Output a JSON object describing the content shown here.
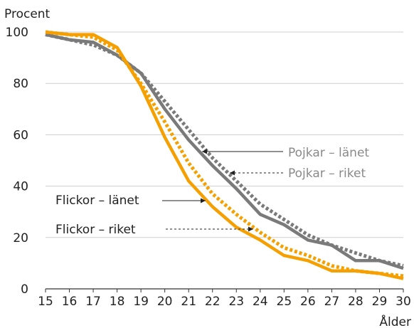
{
  "chart_data": {
    "type": "line",
    "ylabel": "Procent",
    "xlabel": "Ålder",
    "ylim": [
      0,
      100
    ],
    "yticks": [
      0,
      20,
      40,
      60,
      80,
      100
    ],
    "x": [
      15,
      16,
      17,
      18,
      19,
      20,
      21,
      22,
      23,
      24,
      25,
      26,
      27,
      28,
      29,
      30
    ],
    "grid": "horizontal",
    "series": [
      {
        "name": "Pojkar – länet",
        "color": "#7a7a7a",
        "style": "solid",
        "values": [
          99,
          97,
          96,
          91,
          84,
          70,
          58,
          48,
          39,
          29,
          25,
          19,
          17,
          11,
          11,
          8
        ]
      },
      {
        "name": "Pojkar – riket",
        "color": "#7a7a7a",
        "style": "dotted",
        "values": [
          99,
          97,
          95,
          91,
          84,
          73,
          62,
          51,
          42,
          33,
          27,
          21,
          17,
          14,
          11,
          9
        ]
      },
      {
        "name": "Flickor – länet",
        "color": "#f5a000",
        "style": "solid",
        "values": [
          100,
          99,
          99,
          94,
          79,
          59,
          42,
          32,
          24,
          19,
          13,
          11,
          7,
          7,
          6,
          4
        ]
      },
      {
        "name": "Flickor – riket",
        "color": "#f5a000",
        "style": "dotted",
        "values": [
          100,
          99,
          98,
          93,
          80,
          65,
          49,
          37,
          29,
          22,
          16,
          13,
          9,
          7,
          6,
          5
        ]
      }
    ]
  }
}
